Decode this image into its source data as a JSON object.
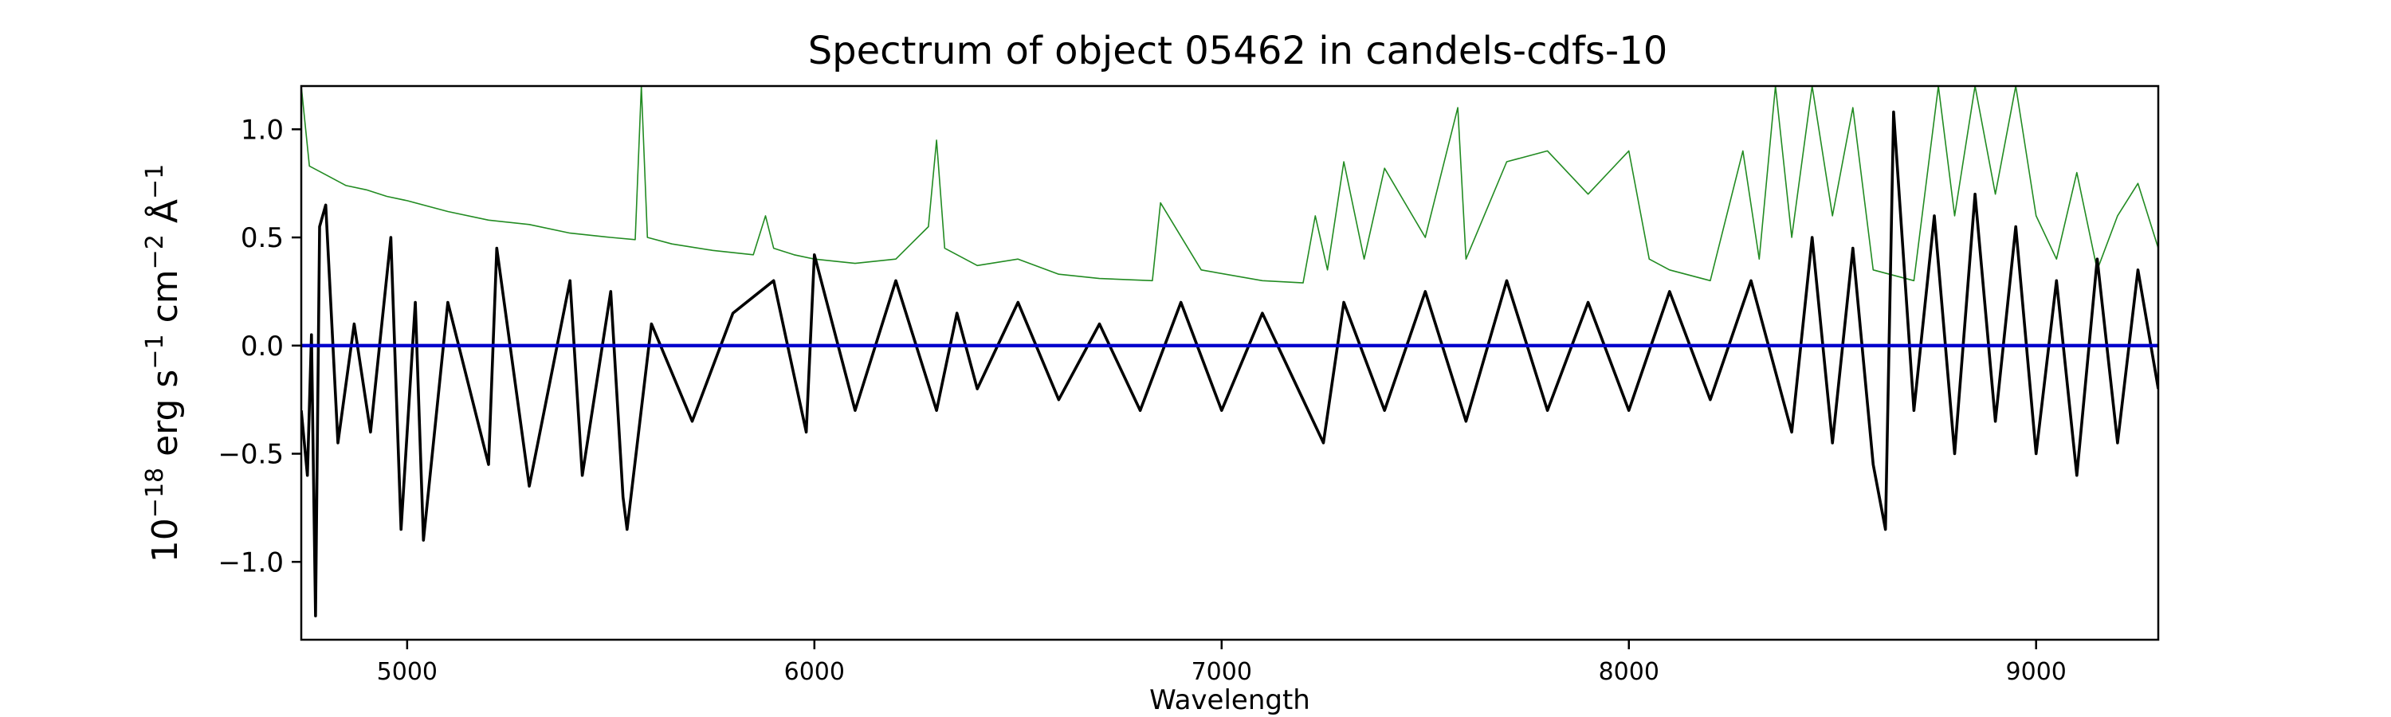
{
  "chart_data": {
    "type": "line",
    "title": "Spectrum of object 05462 in candels-cdfs-10",
    "xlabel": "Wavelength",
    "ylabel_parts": [
      "10",
      "−18",
      " erg s",
      "−1",
      " cm",
      "−2",
      " Å",
      "−1"
    ],
    "xlim": [
      4740,
      9300
    ],
    "ylim": [
      -1.36,
      1.2
    ],
    "xticks": [
      5000,
      6000,
      7000,
      8000,
      9000
    ],
    "xtick_labels": [
      "5000",
      "6000",
      "7000",
      "8000",
      "9000"
    ],
    "yticks": [
      1.0,
      0.5,
      0.0,
      -0.5,
      -1.0
    ],
    "ytick_labels": [
      "1.0",
      "0.5",
      "0.0",
      "−0.5",
      "−1.0"
    ],
    "grid": false,
    "series": [
      {
        "color": "#228B22",
        "x": [
          4740,
          4760,
          4800,
          4850,
          4900,
          4950,
          5000,
          5100,
          5200,
          5300,
          5400,
          5500,
          5560,
          5575,
          5590,
          5650,
          5750,
          5850,
          5880,
          5900,
          5950,
          6000,
          6100,
          6200,
          6280,
          6300,
          6320,
          6400,
          6500,
          6600,
          6700,
          6830,
          6850,
          6950,
          7100,
          7200,
          7230,
          7260,
          7300,
          7350,
          7400,
          7500,
          7580,
          7600,
          7700,
          7800,
          7900,
          8000,
          8050,
          8100,
          8200,
          8280,
          8320,
          8360,
          8400,
          8450,
          8500,
          8550,
          8600,
          8700,
          8760,
          8800,
          8850,
          8900,
          8950,
          9000,
          9050,
          9100,
          9150,
          9200,
          9250,
          9300
        ],
        "y": [
          1.2,
          0.83,
          0.79,
          0.74,
          0.72,
          0.69,
          0.67,
          0.62,
          0.58,
          0.56,
          0.52,
          0.5,
          0.49,
          1.2,
          0.5,
          0.47,
          0.44,
          0.42,
          0.6,
          0.45,
          0.42,
          0.4,
          0.38,
          0.4,
          0.55,
          0.95,
          0.45,
          0.37,
          0.4,
          0.33,
          0.31,
          0.3,
          0.66,
          0.35,
          0.3,
          0.29,
          0.6,
          0.35,
          0.85,
          0.4,
          0.82,
          0.5,
          1.1,
          0.4,
          0.85,
          0.9,
          0.7,
          0.9,
          0.4,
          0.35,
          0.3,
          0.9,
          0.4,
          1.2,
          0.5,
          1.2,
          0.6,
          1.1,
          0.35,
          0.3,
          1.2,
          0.6,
          1.2,
          0.7,
          1.2,
          0.6,
          0.4,
          0.8,
          0.35,
          0.6,
          0.75,
          0.45
        ]
      },
      {
        "color": "#000000",
        "x": [
          4740,
          4755,
          4765,
          4775,
          4785,
          4800,
          4830,
          4870,
          4910,
          4960,
          4985,
          5020,
          5040,
          5100,
          5200,
          5220,
          5300,
          5400,
          5430,
          5500,
          5530,
          5540,
          5600,
          5700,
          5800,
          5900,
          5980,
          6000,
          6100,
          6200,
          6300,
          6350,
          6400,
          6500,
          6600,
          6700,
          6800,
          6900,
          7000,
          7100,
          7200,
          7250,
          7300,
          7400,
          7500,
          7600,
          7700,
          7800,
          7900,
          8000,
          8100,
          8200,
          8300,
          8400,
          8450,
          8500,
          8550,
          8600,
          8630,
          8650,
          8700,
          8750,
          8800,
          8850,
          8900,
          8950,
          9000,
          9050,
          9100,
          9150,
          9200,
          9250,
          9300
        ],
        "y": [
          -0.3,
          -0.6,
          0.05,
          -1.25,
          0.55,
          0.65,
          -0.45,
          0.1,
          -0.4,
          0.5,
          -0.85,
          0.2,
          -0.9,
          0.2,
          -0.55,
          0.45,
          -0.65,
          0.3,
          -0.6,
          0.25,
          -0.7,
          -0.85,
          0.1,
          -0.35,
          0.15,
          0.3,
          -0.4,
          0.42,
          -0.3,
          0.3,
          -0.3,
          0.15,
          -0.2,
          0.2,
          -0.25,
          0.1,
          -0.3,
          0.2,
          -0.3,
          0.15,
          -0.25,
          -0.45,
          0.2,
          -0.3,
          0.25,
          -0.35,
          0.3,
          -0.3,
          0.2,
          -0.3,
          0.25,
          -0.25,
          0.3,
          -0.4,
          0.5,
          -0.45,
          0.45,
          -0.55,
          -0.85,
          1.08,
          -0.3,
          0.6,
          -0.5,
          0.7,
          -0.35,
          0.55,
          -0.5,
          0.3,
          -0.6,
          0.4,
          -0.45,
          0.35,
          -0.2
        ]
      },
      {
        "color": "#0000CD",
        "x": [
          4740,
          9300
        ],
        "y": [
          0.0,
          0.0
        ]
      }
    ]
  }
}
